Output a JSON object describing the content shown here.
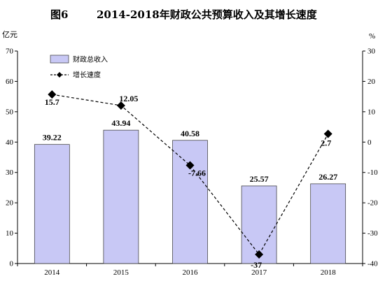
{
  "title": {
    "figure": "图6",
    "text": "2014-2018年财政公共预算收入及其增长速度"
  },
  "chart_data": {
    "type": "bar",
    "categories": [
      "2014",
      "2015",
      "2016",
      "2017",
      "2018"
    ],
    "series": [
      {
        "name": "财政总收入",
        "type": "bar",
        "axis": "left",
        "values": [
          39.22,
          43.94,
          40.58,
          25.57,
          26.27
        ],
        "labels": [
          "39.22",
          "43.94",
          "40.58",
          "25.57",
          "26.27"
        ],
        "color": "#c8c8f5"
      },
      {
        "name": "增长速度",
        "type": "line",
        "axis": "right",
        "values": [
          15.7,
          12.05,
          -7.66,
          -37,
          2.7
        ],
        "labels": [
          "15.7",
          "12.05",
          "-7.66",
          "-37",
          "2.7"
        ],
        "color": "#000000"
      }
    ],
    "y_left": {
      "unit": "亿元",
      "range": [
        0,
        70
      ],
      "ticks": [
        "0",
        "10",
        "20",
        "30",
        "40",
        "50",
        "60",
        "70"
      ]
    },
    "y_right": {
      "unit": "%",
      "range": [
        -40,
        30
      ],
      "ticks": [
        "-40",
        "-30",
        "-20",
        "-10",
        "0",
        "10",
        "20",
        "30"
      ]
    },
    "grid": false,
    "legend": "top-left"
  }
}
